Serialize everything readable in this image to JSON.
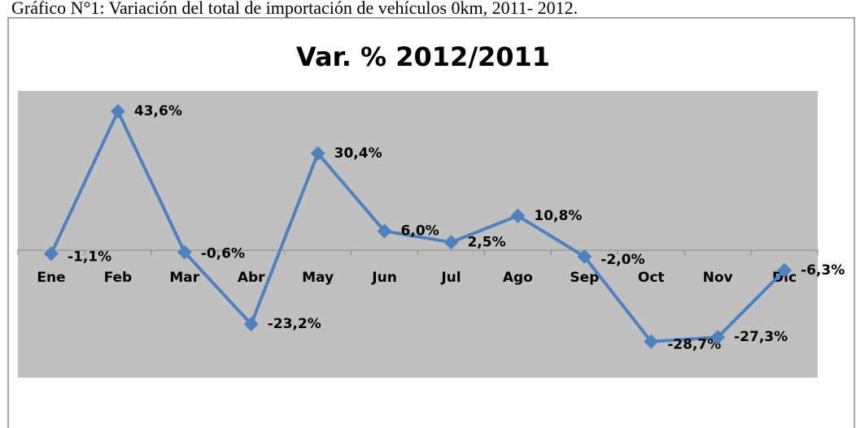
{
  "caption": "Gráfico N°1: Variación del total de importación de vehículos 0km, 2011- 2012.",
  "chart_data": {
    "type": "line",
    "title": "Var. % 2012/2011",
    "categories": [
      "Ene",
      "Feb",
      "Mar",
      "Abr",
      "May",
      "Jun",
      "Jul",
      "Ago",
      "Sep",
      "Oct",
      "Nov",
      "Dic"
    ],
    "series": [
      {
        "name": "Var. %",
        "color": "#4f81bd",
        "values": [
          -1.1,
          43.6,
          -0.6,
          -23.2,
          30.4,
          6.0,
          2.5,
          10.8,
          -2.0,
          -28.7,
          -27.3,
          -6.3
        ],
        "value_labels": [
          "-1,1%",
          "43,6%",
          "-0,6%",
          "-23,2%",
          "30,4%",
          "6,0%",
          "2,5%",
          "10,8%",
          "-2,0%",
          "-28,7%",
          "-27,3%",
          "-6,3%"
        ]
      }
    ],
    "ylim": [
      -40,
      50
    ],
    "plot_background": "#c0c0c0"
  }
}
